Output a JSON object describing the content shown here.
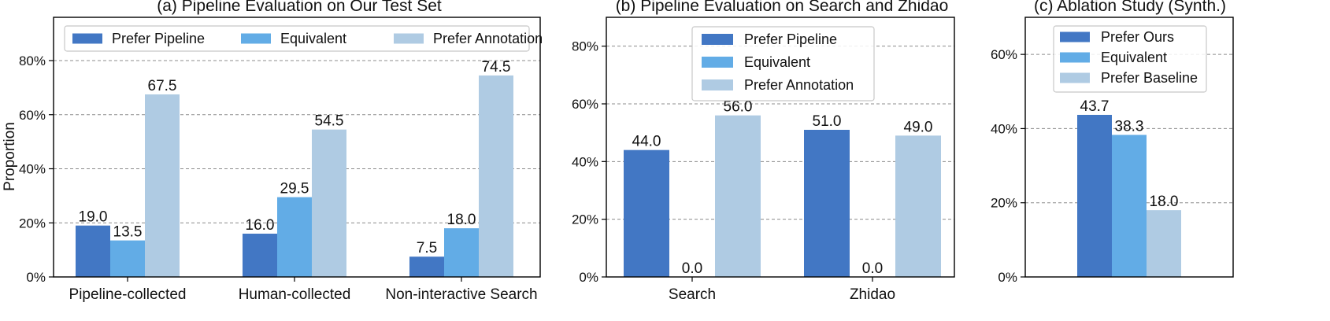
{
  "chart_data": [
    {
      "type": "bar",
      "title": "(a) Pipeline Evaluation on Our Test Set",
      "ylabel": "Proportion",
      "xlabel": "",
      "ylim": [
        0,
        96
      ],
      "yticks": [
        0,
        20,
        40,
        60,
        80
      ],
      "ytick_labels": [
        "0%",
        "20%",
        "40%",
        "60%",
        "80%"
      ],
      "grid": true,
      "legend_position": "top",
      "legend_layout": "row",
      "categories": [
        "Pipeline-collected",
        "Human-collected",
        "Non-interactive Search"
      ],
      "series": [
        {
          "name": "Prefer Pipeline",
          "values": [
            19.0,
            16.0,
            7.5
          ],
          "labels": [
            "19.0",
            "16.0",
            "7.5"
          ],
          "color": "#4277c4"
        },
        {
          "name": "Equivalent",
          "values": [
            13.5,
            29.5,
            18.0
          ],
          "labels": [
            "13.5",
            "29.5",
            "18.0"
          ],
          "color": "#62ace6"
        },
        {
          "name": "Prefer Annotation",
          "values": [
            67.5,
            54.5,
            74.5
          ],
          "labels": [
            "67.5",
            "54.5",
            "74.5"
          ],
          "color": "#afcbe3"
        }
      ]
    },
    {
      "type": "bar",
      "title": "(b) Pipeline Evaluation on Search and Zhidao",
      "ylabel": "",
      "xlabel": "",
      "ylim": [
        0,
        90
      ],
      "yticks": [
        0,
        20,
        40,
        60,
        80
      ],
      "ytick_labels": [
        "0%",
        "20%",
        "40%",
        "60%",
        "80%"
      ],
      "grid": true,
      "legend_position": "top-center",
      "legend_layout": "column",
      "categories": [
        "Search",
        "Zhidao"
      ],
      "series": [
        {
          "name": "Prefer Pipeline",
          "values": [
            44.0,
            51.0
          ],
          "labels": [
            "44.0",
            "51.0"
          ],
          "color": "#4277c4"
        },
        {
          "name": "Equivalent",
          "values": [
            0.0,
            0.0
          ],
          "labels": [
            "0.0",
            "0.0"
          ],
          "color": "#62ace6"
        },
        {
          "name": "Prefer Annotation",
          "values": [
            56.0,
            49.0
          ],
          "labels": [
            "56.0",
            "49.0"
          ],
          "color": "#afcbe3"
        }
      ]
    },
    {
      "type": "bar",
      "title": "(c) Ablation Study (Synth.)",
      "ylabel": "",
      "xlabel": "",
      "ylim": [
        0,
        70
      ],
      "yticks": [
        0,
        20,
        40,
        60
      ],
      "ytick_labels": [
        "0%",
        "20%",
        "40%",
        "60%"
      ],
      "grid": true,
      "legend_position": "top-center",
      "legend_layout": "column",
      "categories": [
        ""
      ],
      "series": [
        {
          "name": "Prefer Ours",
          "values": [
            43.7
          ],
          "labels": [
            "43.7"
          ],
          "color": "#4277c4"
        },
        {
          "name": "Equivalent",
          "values": [
            38.3
          ],
          "labels": [
            "38.3"
          ],
          "color": "#62ace6"
        },
        {
          "name": "Prefer Baseline",
          "values": [
            18.0
          ],
          "labels": [
            "18.0"
          ],
          "color": "#afcbe3"
        }
      ]
    }
  ]
}
